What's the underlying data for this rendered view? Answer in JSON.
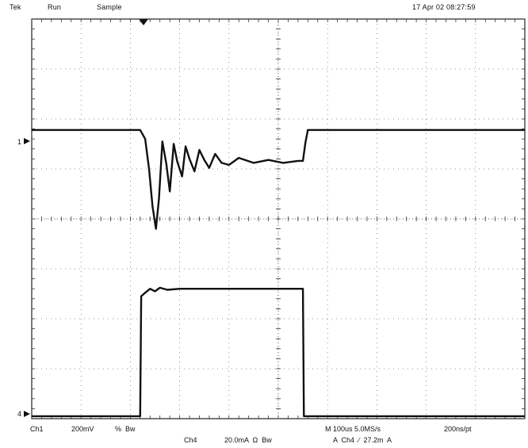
{
  "header": {
    "brand": "Tek",
    "state": "Run",
    "mode": "Sample",
    "timestamp": "17 Apr 02 08:27:59"
  },
  "markers": {
    "ch1_level": "1",
    "ch4_level": "4"
  },
  "footer": {
    "ch1_label": "Ch1",
    "ch1_scale": "200mV",
    "ch1_coupling": "%  Bw",
    "ch4_label": "Ch4",
    "ch4_scale": "20.0mA  Ω  Bw",
    "timebase": "M 100us 5.0MS/s",
    "record": "200ns/pt",
    "trigger": "A  Ch4  ∕  27.2m  A"
  },
  "chart_data": {
    "type": "line",
    "title": "",
    "xlabel": "",
    "ylabel": "",
    "grid": true,
    "grid_divisions": {
      "x": 10,
      "y": 8
    },
    "x_units": "div",
    "y_units": "div",
    "xlim": [
      0,
      10
    ],
    "ylim": [
      -4,
      4
    ],
    "series": [
      {
        "name": "Ch1",
        "color": "#111111",
        "points": [
          [
            0,
            1.78
          ],
          [
            2.2,
            1.78
          ],
          [
            2.3,
            1.6
          ],
          [
            2.38,
            1.0
          ],
          [
            2.45,
            0.25
          ],
          [
            2.52,
            -0.2
          ],
          [
            2.58,
            0.4
          ],
          [
            2.65,
            1.55
          ],
          [
            2.73,
            1.1
          ],
          [
            2.8,
            0.55
          ],
          [
            2.88,
            1.5
          ],
          [
            2.95,
            1.15
          ],
          [
            3.05,
            0.85
          ],
          [
            3.12,
            1.45
          ],
          [
            3.2,
            1.2
          ],
          [
            3.3,
            0.95
          ],
          [
            3.4,
            1.38
          ],
          [
            3.5,
            1.18
          ],
          [
            3.6,
            1.02
          ],
          [
            3.72,
            1.3
          ],
          [
            3.85,
            1.12
          ],
          [
            4.0,
            1.08
          ],
          [
            4.2,
            1.22
          ],
          [
            4.5,
            1.12
          ],
          [
            4.8,
            1.18
          ],
          [
            5.1,
            1.12
          ],
          [
            5.4,
            1.16
          ],
          [
            5.5,
            1.16
          ],
          [
            5.55,
            1.52
          ],
          [
            5.6,
            1.78
          ],
          [
            10,
            1.78
          ]
        ]
      },
      {
        "name": "Ch4",
        "color": "#111111",
        "points": [
          [
            0,
            -3.95
          ],
          [
            2.2,
            -3.95
          ],
          [
            2.22,
            -1.55
          ],
          [
            2.3,
            -1.48
          ],
          [
            2.4,
            -1.4
          ],
          [
            2.5,
            -1.45
          ],
          [
            2.6,
            -1.38
          ],
          [
            2.75,
            -1.42
          ],
          [
            3.0,
            -1.4
          ],
          [
            4.0,
            -1.4
          ],
          [
            5.5,
            -1.4
          ],
          [
            5.52,
            -3.95
          ],
          [
            10,
            -3.95
          ]
        ]
      }
    ]
  }
}
